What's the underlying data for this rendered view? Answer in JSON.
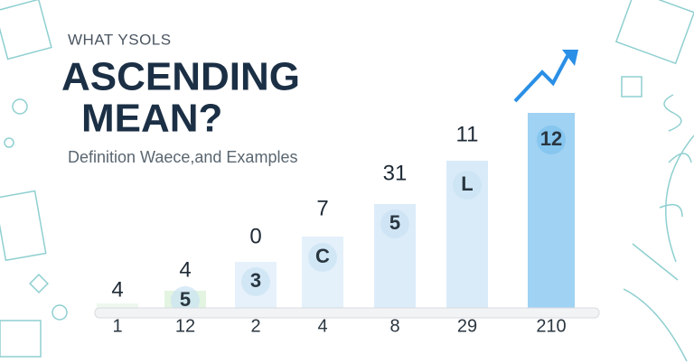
{
  "header": {
    "kicker": "WHAT YSOLS",
    "title_line1": "ASCENDING",
    "title_line2": "MEAN?",
    "subtitle": "Definition Waece,and Examples"
  },
  "columns": [
    {
      "top": "4",
      "base": "1"
    },
    {
      "top": "4",
      "inner": "5",
      "base": "12"
    },
    {
      "top": "0",
      "inner": "3",
      "base": "2"
    },
    {
      "top": "7",
      "inner": "C",
      "base": "4"
    },
    {
      "top": "31",
      "inner": "5",
      "base": "8"
    },
    {
      "top": "11",
      "inner": "L",
      "base": "29"
    },
    {
      "inner": "12",
      "base": "210"
    }
  ]
}
